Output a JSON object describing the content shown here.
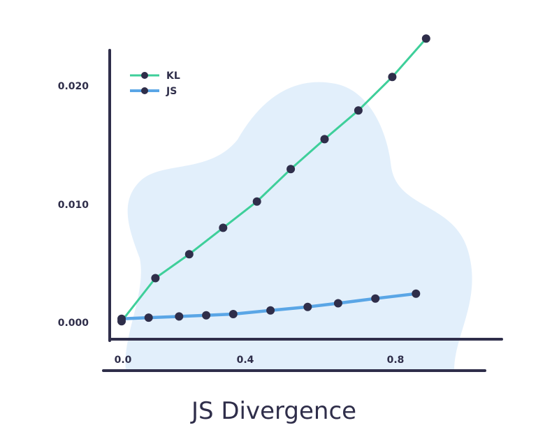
{
  "chart_data": {
    "type": "line",
    "title": "JS Divergence",
    "xlabel": "",
    "ylabel": "",
    "x_ticks": [
      "0.0",
      "0.4",
      "0.8"
    ],
    "y_ticks": [
      "0.000",
      "0.010",
      "0.020"
    ],
    "xlim": [
      0.0,
      0.95
    ],
    "ylim": [
      -0.0015,
      0.0235
    ],
    "grid": false,
    "legend_position": "top-left",
    "series": [
      {
        "name": "KL",
        "color": "#3ecf9a",
        "x": [
          0.0,
          0.1,
          0.2,
          0.3,
          0.4,
          0.5,
          0.6,
          0.7,
          0.8,
          0.9
        ],
        "y": [
          0.0,
          0.0036,
          0.0056,
          0.0078,
          0.01,
          0.0127,
          0.0152,
          0.0176,
          0.0204,
          0.0236
        ]
      },
      {
        "name": "JS",
        "color": "#5aa6e6",
        "x": [
          0.0,
          0.08,
          0.17,
          0.25,
          0.33,
          0.44,
          0.55,
          0.64,
          0.75,
          0.87
        ],
        "y": [
          0.0002,
          0.0003,
          0.0004,
          0.0005,
          0.0006,
          0.0009,
          0.0012,
          0.0015,
          0.0019,
          0.0023
        ]
      }
    ],
    "colors": {
      "axis": "#2f2e4a",
      "marker": "#2f2e4a",
      "blob": "#e2effb"
    }
  }
}
